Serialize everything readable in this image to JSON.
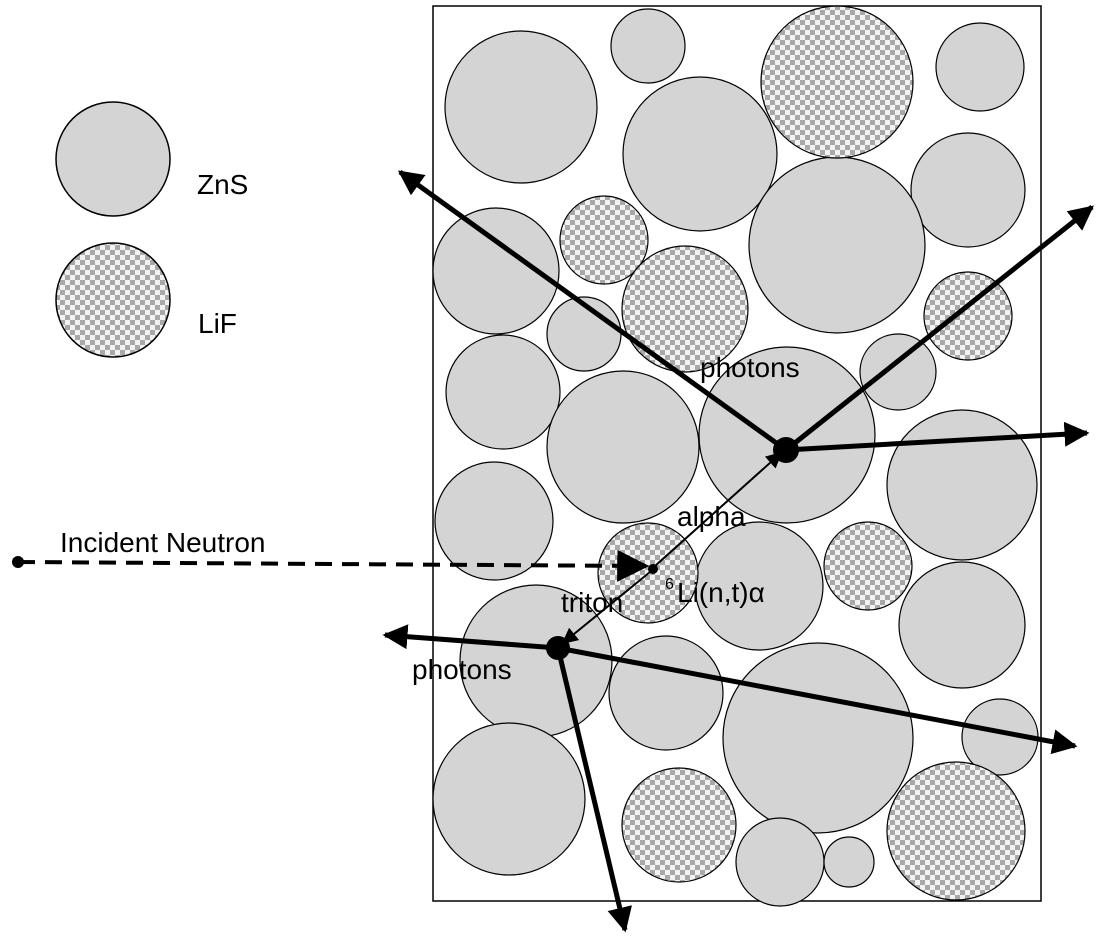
{
  "legend": {
    "zns_label": "ZnS",
    "lif_label": "LiF"
  },
  "labels": {
    "incident_neutron": "Incident Neutron",
    "photons_upper": "photons",
    "alpha": "alpha",
    "reaction_superscript": "6",
    "reaction": "Li(n,t)α",
    "triton": "triton",
    "photons_lower": "photons"
  },
  "colors": {
    "zns_fill": "#d4d4d4",
    "lif_fill_light": "#f2f2f2",
    "lif_fill_dark": "#a8a8a8",
    "stroke": "#000000",
    "background": "#ffffff"
  }
}
